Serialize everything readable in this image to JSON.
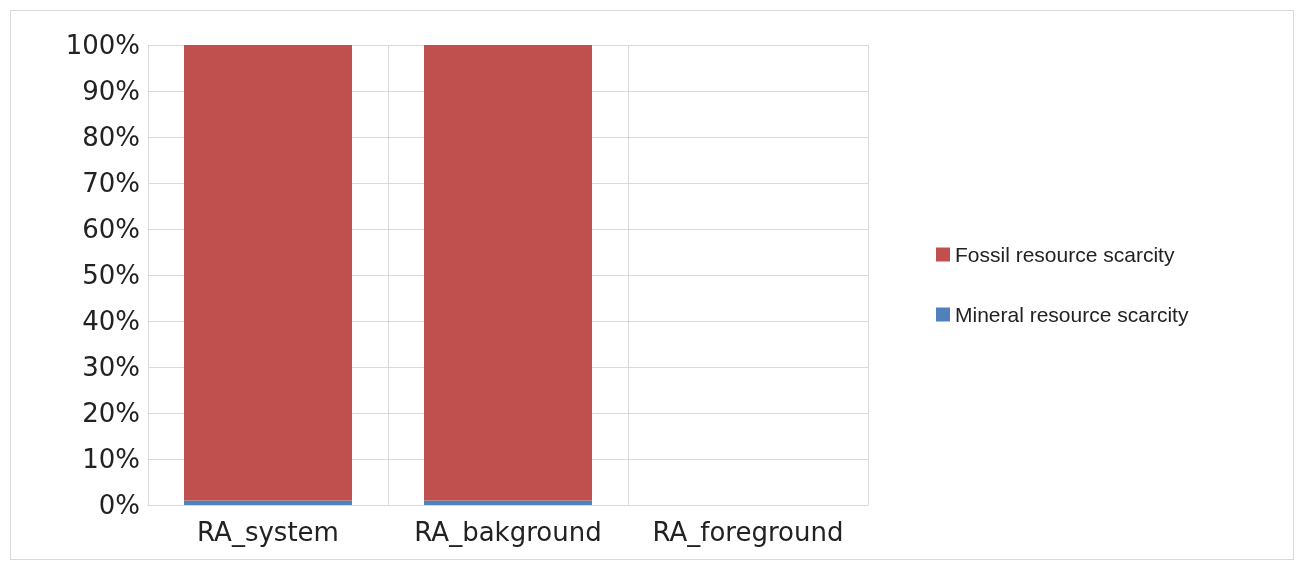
{
  "chart_data": {
    "type": "bar",
    "stacked": true,
    "categories": [
      "RA_system",
      "RA_bakground",
      "RA_foreground"
    ],
    "series": [
      {
        "name": "Mineral resource scarcity",
        "color": "#4f81bd",
        "values": [
          1,
          1,
          null
        ]
      },
      {
        "name": "Fossil resource scarcity",
        "color": "#c0504d",
        "values": [
          99,
          99,
          null
        ]
      }
    ],
    "ylim": [
      0,
      100
    ],
    "yticks": [
      {
        "value": 0,
        "label": "0%"
      },
      {
        "value": 10,
        "label": "10%"
      },
      {
        "value": 20,
        "label": "20%"
      },
      {
        "value": 30,
        "label": "30%"
      },
      {
        "value": 40,
        "label": "40%"
      },
      {
        "value": 50,
        "label": "50%"
      },
      {
        "value": 60,
        "label": "60%"
      },
      {
        "value": 70,
        "label": "70%"
      },
      {
        "value": 80,
        "label": "80%"
      },
      {
        "value": 90,
        "label": "90%"
      },
      {
        "value": 100,
        "label": "100%"
      }
    ],
    "grid": true,
    "legend": "right"
  }
}
